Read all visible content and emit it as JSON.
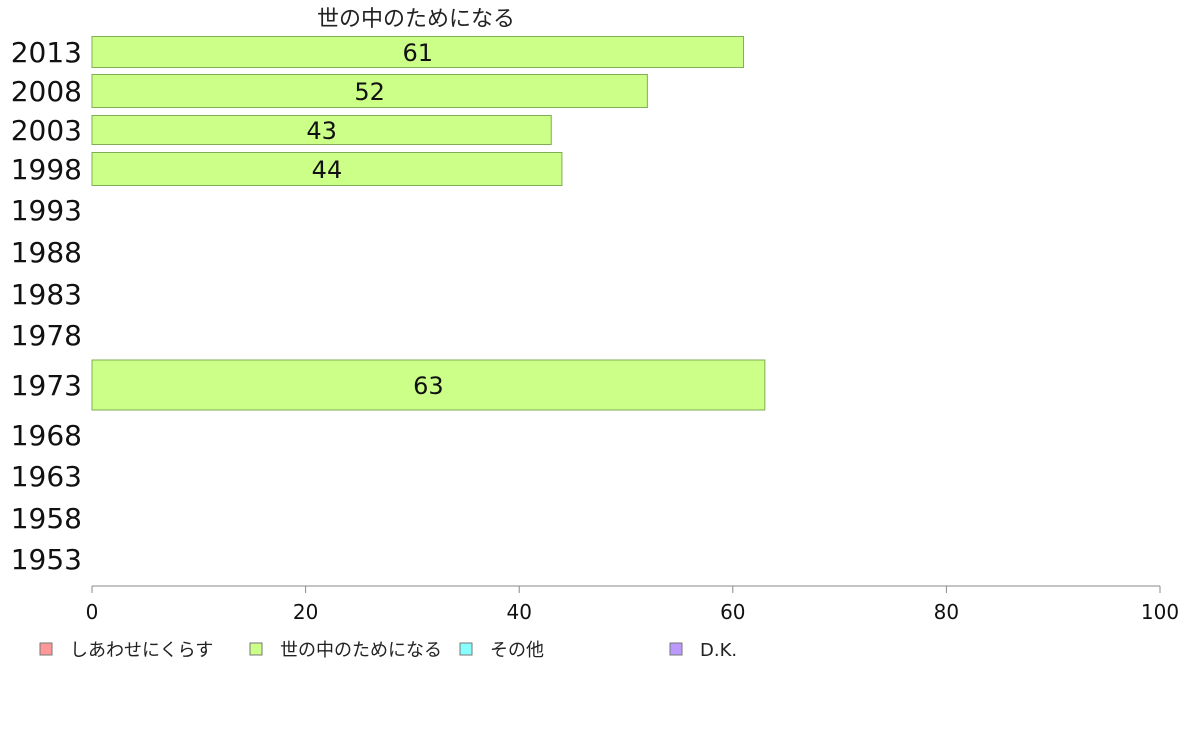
{
  "chart_data": {
    "type": "bar",
    "orientation": "horizontal",
    "title": "世の中のためになる",
    "categories": [
      "2013",
      "2008",
      "2003",
      "1998",
      "1993",
      "1988",
      "1983",
      "1978",
      "1973",
      "1968",
      "1963",
      "1958",
      "1953"
    ],
    "series": [
      {
        "name": "世の中のためになる",
        "color": "#ccff88",
        "values": [
          61,
          52,
          43,
          44,
          null,
          null,
          null,
          null,
          63,
          null,
          null,
          null,
          null
        ]
      }
    ],
    "xlim": [
      0,
      100
    ],
    "xticks": [
      0,
      20,
      40,
      60,
      80,
      100
    ],
    "grid": false,
    "legend": {
      "placement": "bottom",
      "entries": [
        {
          "label": "しあわせにくらす",
          "color": "#ff9999"
        },
        {
          "label": "世の中のためになる",
          "color": "#ccff88"
        },
        {
          "label": "その他",
          "color": "#88ffff"
        },
        {
          "label": "D.K.",
          "color": "#bb99ff"
        }
      ]
    }
  }
}
